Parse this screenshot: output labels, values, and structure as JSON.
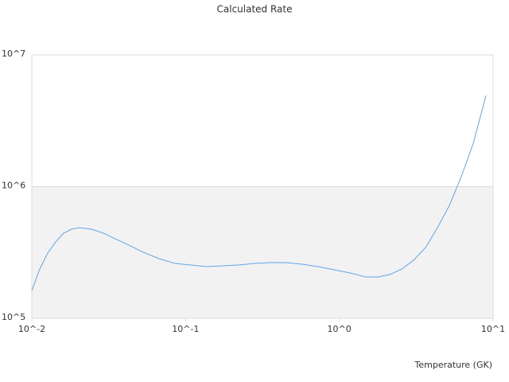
{
  "chart_data": {
    "type": "line",
    "title": "Calculated Rate",
    "x_label": "Temperature (GK)",
    "log_x": true,
    "log_y": true,
    "grid": true,
    "xlim": [
      0.01,
      10
    ],
    "ylim": [
      100000,
      10000000
    ],
    "xticks": [
      {
        "value": 0.01,
        "label": "10^-2"
      },
      {
        "value": 0.1,
        "label": "10^-1"
      },
      {
        "value": 1,
        "label": "10^0"
      },
      {
        "value": 10,
        "label": "10^1"
      }
    ],
    "yticks": [
      {
        "value": 100000,
        "label": "10^5"
      },
      {
        "value": 1000000,
        "label": "10^6"
      },
      {
        "value": 10000000,
        "label": "10^7"
      }
    ],
    "series": [
      {
        "color": "#5ea6e6",
        "x": [
          0.01,
          0.01127,
          0.01268,
          0.01429,
          0.0161,
          0.01815,
          0.0204,
          0.0244,
          0.0292,
          0.0349,
          0.0418,
          0.053,
          0.0673,
          0.0853,
          0.108,
          0.1374,
          0.174,
          0.221,
          0.281,
          0.356,
          0.452,
          0.574,
          0.728,
          0.924,
          1.173,
          1.489,
          1.78,
          2.13,
          2.55,
          3.04,
          3.64,
          4.35,
          5.2,
          6.21,
          7.43,
          8.99
        ],
        "values": [
          162600,
          237000,
          312600,
          380000,
          443600,
          475000,
          488000,
          475000,
          443600,
          401600,
          364500,
          317500,
          284000,
          261000,
          254000,
          247000,
          250600,
          254000,
          261000,
          265000,
          265000,
          257700,
          247000,
          233800,
          221000,
          206000,
          206000,
          215000,
          237000,
          276000,
          345000,
          488000,
          721000,
          1190000,
          2130000,
          4920000
        ]
      }
    ]
  }
}
